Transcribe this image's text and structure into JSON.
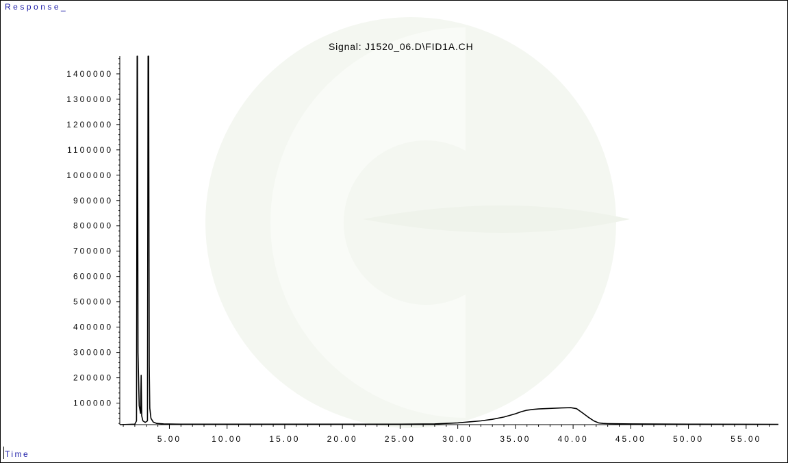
{
  "window": {
    "response_label": "Response_",
    "time_label": "Time"
  },
  "chart_data": {
    "type": "line",
    "title": "Signal: J1520_06.D\\FID1A.CH",
    "xlabel": "Time",
    "ylabel": "Response_",
    "xlim": [
      0.7,
      57.8
    ],
    "ylim": [
      15000,
      1470000
    ],
    "x_ticks": [
      5,
      10,
      15,
      20,
      25,
      30,
      35,
      40,
      45,
      50,
      55
    ],
    "x_tick_labels": [
      "5.00",
      "10.00",
      "15.00",
      "20.00",
      "25.00",
      "30.00",
      "35.00",
      "40.00",
      "45.00",
      "50.00",
      "55.00"
    ],
    "y_ticks": [
      100000,
      200000,
      300000,
      400000,
      500000,
      600000,
      700000,
      800000,
      900000,
      1000000,
      1100000,
      1200000,
      1300000,
      1400000
    ],
    "y_tick_labels": [
      "100000",
      "200000",
      "300000",
      "400000",
      "500000",
      "600000",
      "700000",
      "800000",
      "900000",
      "1000000",
      "1100000",
      "1200000",
      "1300000",
      "1400000"
    ],
    "grid": false,
    "series": [
      {
        "line_color": "#000000",
        "x": [
          0.7,
          2.0,
          2.15,
          2.2,
          2.23,
          2.28,
          2.38,
          2.5,
          2.55,
          2.6,
          2.7,
          2.9,
          3.1,
          3.15,
          3.2,
          3.25,
          3.3,
          3.4,
          3.6,
          3.9,
          4.5,
          6,
          10,
          15,
          20,
          25,
          28,
          30,
          31,
          32,
          33,
          34,
          35,
          35.5,
          36,
          36.5,
          37,
          38,
          39,
          39.8,
          40.3,
          40.8,
          41.3,
          41.8,
          42.2,
          42.6,
          43,
          45,
          50,
          55,
          57.8
        ],
        "y": [
          15000,
          17000,
          30000,
          1470000,
          1470000,
          300000,
          90000,
          60000,
          210000,
          50000,
          30000,
          24000,
          30000,
          1470000,
          1470000,
          250000,
          80000,
          40000,
          25000,
          20000,
          18000,
          17000,
          17000,
          17000,
          17000,
          17000,
          18000,
          22000,
          26000,
          30000,
          36000,
          45000,
          58000,
          66000,
          72000,
          75000,
          77000,
          79000,
          81000,
          82000,
          78000,
          62000,
          45000,
          30000,
          22000,
          20000,
          19000,
          18000,
          17000,
          16500,
          16000
        ]
      }
    ]
  }
}
